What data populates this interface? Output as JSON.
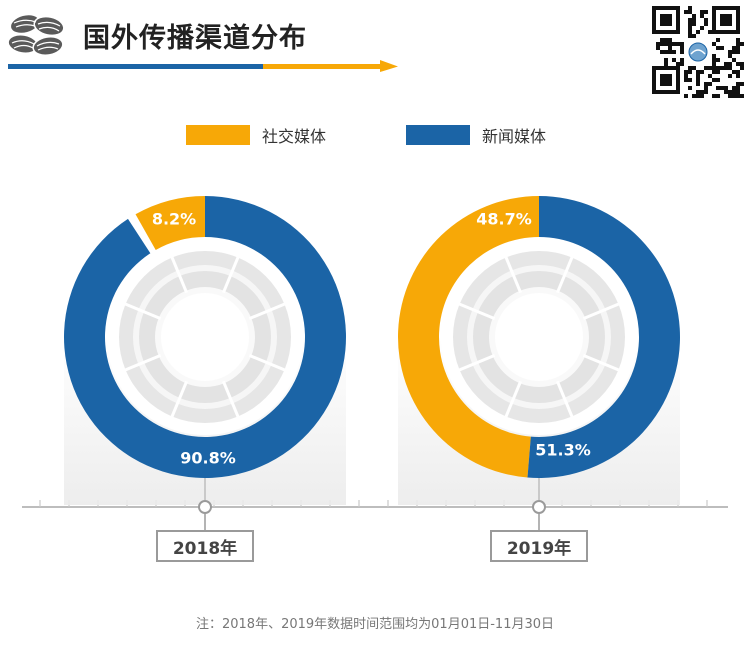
{
  "header": {
    "title": "国外传播渠道分布"
  },
  "colors": {
    "social": "#F7A807",
    "news": "#1B64A6",
    "title_bar_blue": "#1B64A6",
    "title_bar_orange": "#F7A807"
  },
  "legend": [
    {
      "label": "社交媒体",
      "color": "#F7A807"
    },
    {
      "label": "新闻媒体",
      "color": "#1B64A6"
    }
  ],
  "chart_data": [
    {
      "type": "pie",
      "donut": true,
      "category": "2018年",
      "slices": [
        {
          "series": "社交媒体",
          "value": 8.2,
          "label": "8.2%",
          "color": "#F7A807"
        },
        {
          "series": "新闻媒体",
          "value": 90.8,
          "label": "90.8%",
          "color": "#1B64A6"
        }
      ]
    },
    {
      "type": "pie",
      "donut": true,
      "category": "2019年",
      "slices": [
        {
          "series": "社交媒体",
          "value": 48.7,
          "label": "48.7%",
          "color": "#F7A807"
        },
        {
          "series": "新闻媒体",
          "value": 51.3,
          "label": "51.3%",
          "color": "#1B64A6"
        }
      ]
    }
  ],
  "footnote": "注：2018年、2019年数据时间范围均为01月01日-11月30日",
  "icons": [
    "logo-icon",
    "qr-code-icon"
  ]
}
